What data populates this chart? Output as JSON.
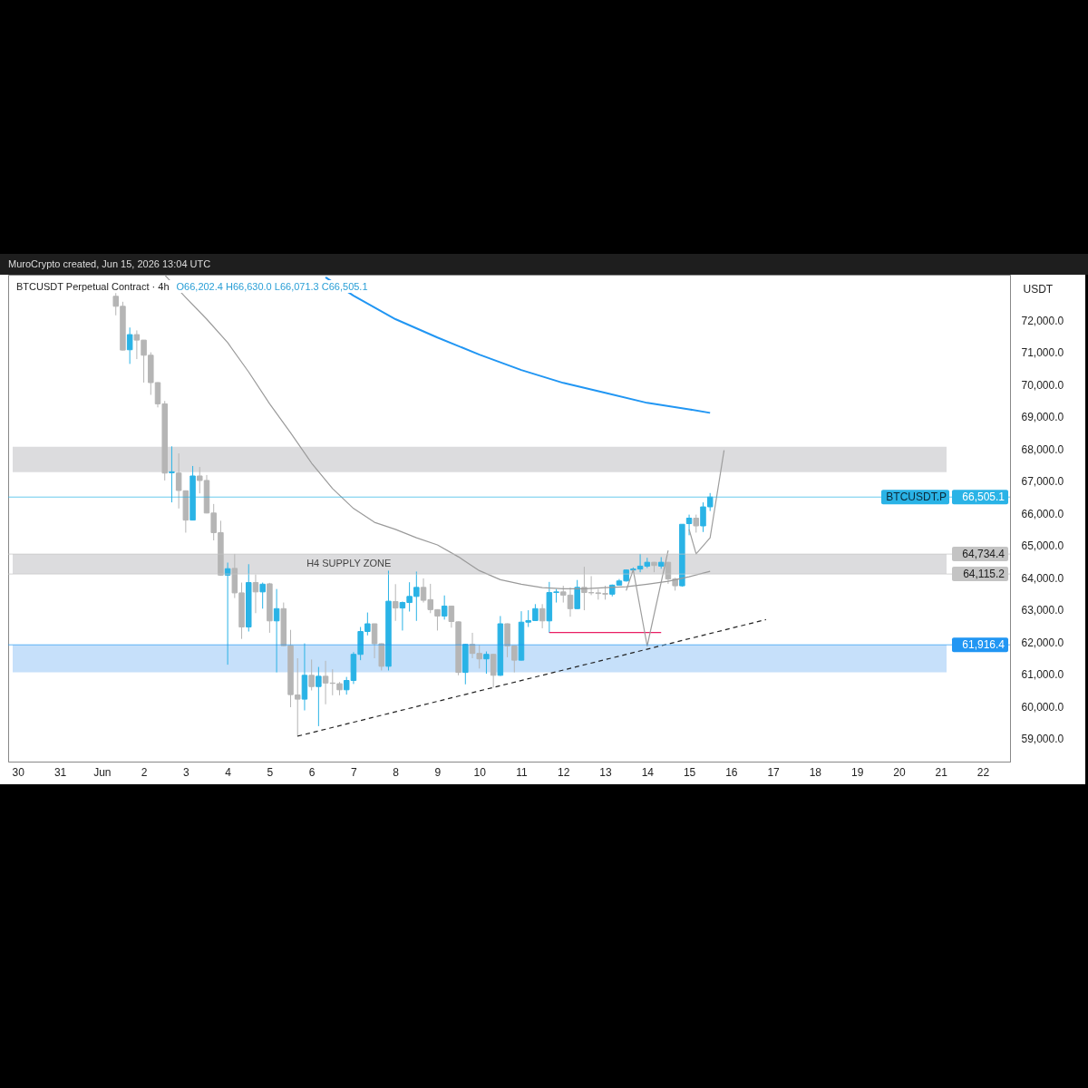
{
  "chart_data": {
    "type": "candlestick",
    "title": "BTCUSDT Perpetual Contract · 4h",
    "subtitle": "O66,202.4 H66,630.0 L66,071.3 C66,505.1",
    "ylabel": "USDT",
    "annotations": [
      "MuroCrypto created, Jun 15, 2026 13:04 UTC",
      {
        "text": "BTCUSDT.P",
        "y": 66505.1
      }
    ],
    "x": [
      "2026-06-01T08:00",
      "2026-06-01T12:00",
      "2026-06-01T16:00",
      "2026-06-01T20:00",
      "2026-06-02T00:00",
      "2026-06-02T04:00",
      "2026-06-02T08:00",
      "2026-06-02T12:00",
      "2026-06-02T16:00",
      "2026-06-02T20:00",
      "2026-06-03T00:00",
      "2026-06-03T04:00",
      "2026-06-03T08:00",
      "2026-06-03T12:00",
      "2026-06-03T16:00",
      "2026-06-03T20:00",
      "2026-06-04T00:00",
      "2026-06-04T04:00",
      "2026-06-04T08:00",
      "2026-06-04T12:00",
      "2026-06-04T16:00",
      "2026-06-04T20:00",
      "2026-06-05T00:00",
      "2026-06-05T04:00",
      "2026-06-05T08:00",
      "2026-06-05T12:00",
      "2026-06-05T16:00",
      "2026-06-05T20:00",
      "2026-06-06T00:00",
      "2026-06-06T04:00",
      "2026-06-06T08:00",
      "2026-06-06T12:00",
      "2026-06-06T16:00",
      "2026-06-06T20:00",
      "2026-06-07T00:00",
      "2026-06-07T04:00",
      "2026-06-07T08:00",
      "2026-06-07T12:00",
      "2026-06-07T16:00",
      "2026-06-07T20:00",
      "2026-06-08T00:00",
      "2026-06-08T04:00",
      "2026-06-08T08:00",
      "2026-06-08T12:00",
      "2026-06-08T16:00",
      "2026-06-08T20:00",
      "2026-06-09T00:00",
      "2026-06-09T04:00",
      "2026-06-09T08:00",
      "2026-06-09T12:00",
      "2026-06-09T16:00",
      "2026-06-09T20:00",
      "2026-06-10T00:00",
      "2026-06-10T04:00",
      "2026-06-10T08:00",
      "2026-06-10T12:00",
      "2026-06-10T16:00",
      "2026-06-10T20:00",
      "2026-06-11T00:00",
      "2026-06-11T04:00",
      "2026-06-11T08:00",
      "2026-06-11T12:00",
      "2026-06-11T16:00",
      "2026-06-11T20:00",
      "2026-06-12T00:00",
      "2026-06-12T04:00",
      "2026-06-12T08:00",
      "2026-06-12T12:00",
      "2026-06-12T16:00",
      "2026-06-12T20:00",
      "2026-06-13T00:00",
      "2026-06-13T04:00",
      "2026-06-13T08:00",
      "2026-06-13T12:00",
      "2026-06-13T16:00",
      "2026-06-13T20:00",
      "2026-06-14T00:00",
      "2026-06-14T04:00",
      "2026-06-14T08:00",
      "2026-06-14T12:00",
      "2026-06-14T16:00",
      "2026-06-14T20:00",
      "2026-06-15T00:00",
      "2026-06-15T04:00",
      "2026-06-15T08:00",
      "2026-06-15T12:00"
    ],
    "ohlc": [
      [
        72740,
        72840,
        72150,
        72430
      ],
      [
        72430,
        72570,
        71060,
        71070
      ],
      [
        71080,
        71770,
        70640,
        71550
      ],
      [
        71550,
        71680,
        70790,
        71380
      ],
      [
        71380,
        71380,
        70060,
        70910
      ],
      [
        70910,
        71000,
        69680,
        70060
      ],
      [
        70060,
        70070,
        69290,
        69400
      ],
      [
        69400,
        69490,
        67020,
        67250
      ],
      [
        67260,
        68080,
        66340,
        67290
      ],
      [
        67250,
        67860,
        66150,
        66710
      ],
      [
        66700,
        66710,
        65400,
        65790
      ],
      [
        65790,
        67470,
        65780,
        67160
      ],
      [
        67160,
        67440,
        66620,
        67020
      ],
      [
        67020,
        67190,
        66000,
        66010
      ],
      [
        66010,
        66290,
        65160,
        65400
      ],
      [
        65400,
        65770,
        64060,
        64080
      ],
      [
        64080,
        64470,
        61300,
        64280
      ],
      [
        64290,
        64740,
        63370,
        63530
      ],
      [
        63530,
        63850,
        62100,
        62470
      ],
      [
        62470,
        64420,
        62330,
        63850
      ],
      [
        63850,
        64100,
        62900,
        63560
      ],
      [
        63560,
        63850,
        63040,
        63800
      ],
      [
        63810,
        63840,
        62290,
        62660
      ],
      [
        62660,
        63650,
        61060,
        63040
      ],
      [
        63040,
        63230,
        61880,
        61890
      ],
      [
        61890,
        62380,
        59980,
        60370
      ],
      [
        60360,
        61500,
        59060,
        60230
      ],
      [
        60230,
        61960,
        59880,
        60970
      ],
      [
        60970,
        61460,
        60500,
        60620
      ],
      [
        60620,
        61230,
        59390,
        60940
      ],
      [
        60940,
        61420,
        60070,
        60730
      ],
      [
        60730,
        61160,
        60350,
        60720
      ],
      [
        60710,
        60760,
        60350,
        60520
      ],
      [
        60520,
        60920,
        60370,
        60810
      ],
      [
        60810,
        61690,
        60700,
        61620
      ],
      [
        61620,
        62470,
        61440,
        62330
      ],
      [
        62330,
        62920,
        62210,
        62570
      ],
      [
        62570,
        62570,
        61500,
        61950
      ],
      [
        61950,
        61960,
        61120,
        61250
      ],
      [
        61250,
        64220,
        61120,
        63270
      ],
      [
        63260,
        63800,
        62660,
        63060
      ],
      [
        63060,
        63260,
        62360,
        63230
      ],
      [
        63230,
        63860,
        62950,
        63420
      ],
      [
        63420,
        64190,
        62660,
        63700
      ],
      [
        63700,
        63980,
        63230,
        63300
      ],
      [
        63320,
        63810,
        62900,
        63010
      ],
      [
        63010,
        63020,
        62360,
        62810
      ],
      [
        62810,
        63450,
        62700,
        63120
      ],
      [
        63120,
        63130,
        62450,
        62640
      ],
      [
        62630,
        62640,
        60970,
        61060
      ],
      [
        61060,
        61940,
        60690,
        61930
      ],
      [
        61930,
        62290,
        61500,
        61650
      ],
      [
        61650,
        61910,
        61180,
        61480
      ],
      [
        61480,
        61710,
        61020,
        61620
      ],
      [
        61620,
        61630,
        60590,
        60970
      ],
      [
        60970,
        62810,
        60950,
        62570
      ],
      [
        62570,
        62580,
        61530,
        61880
      ],
      [
        61880,
        61890,
        61060,
        61440
      ],
      [
        61440,
        62960,
        61430,
        62620
      ],
      [
        62620,
        62990,
        62470,
        62670
      ],
      [
        62670,
        63180,
        62660,
        63040
      ],
      [
        63040,
        63180,
        62430,
        62660
      ],
      [
        62660,
        63870,
        62290,
        63540
      ],
      [
        63540,
        63650,
        63230,
        63560
      ],
      [
        63560,
        63750,
        63230,
        63460
      ],
      [
        63460,
        63700,
        62790,
        63040
      ],
      [
        63040,
        63930,
        63030,
        63700
      ],
      [
        63700,
        64340,
        62990,
        63540
      ],
      [
        63540,
        64050,
        63460,
        63530
      ],
      [
        63530,
        63650,
        63320,
        63510
      ],
      [
        63510,
        63750,
        63320,
        63490
      ],
      [
        63490,
        63790,
        63420,
        63770
      ],
      [
        63770,
        63960,
        63770,
        63900
      ],
      [
        63900,
        64260,
        63880,
        64240
      ],
      [
        64240,
        64320,
        64220,
        64270
      ],
      [
        64270,
        64740,
        64170,
        64360
      ],
      [
        64360,
        64620,
        64300,
        64480
      ],
      [
        64480,
        64490,
        64170,
        64380
      ],
      [
        64360,
        64640,
        64280,
        64480
      ],
      [
        64480,
        64490,
        63810,
        63960
      ],
      [
        63960,
        64000,
        63600,
        63750
      ],
      [
        63750,
        65660,
        63720,
        65660
      ],
      [
        65680,
        65960,
        65320,
        65850
      ],
      [
        65850,
        65960,
        65400,
        65610
      ],
      [
        65610,
        66340,
        65420,
        66200
      ],
      [
        66202.4,
        66630,
        66071.3,
        66505.1
      ]
    ],
    "colors": [
      "#b5b5b5",
      "#b5b5b5",
      "#2ab3e6",
      "#b5b5b5",
      "#b5b5b5",
      "#b5b5b5",
      "#b5b5b5",
      "#b5b5b5",
      "#2ab3e6",
      "#b5b5b5",
      "#b5b5b5",
      "#2ab3e6",
      "#b5b5b5",
      "#b5b5b5",
      "#b5b5b5",
      "#b5b5b5",
      "#2ab3e6",
      "#b5b5b5",
      "#b5b5b5",
      "#2ab3e6",
      "#b5b5b5",
      "#2ab3e6",
      "#b5b5b5",
      "#2ab3e6",
      "#b5b5b5",
      "#b5b5b5",
      "#b5b5b5",
      "#2ab3e6",
      "#b5b5b5",
      "#2ab3e6",
      "#b5b5b5",
      "#b5b5b5",
      "#b5b5b5",
      "#2ab3e6",
      "#2ab3e6",
      "#2ab3e6",
      "#2ab3e6",
      "#b5b5b5",
      "#b5b5b5",
      "#2ab3e6",
      "#b5b5b5",
      "#2ab3e6",
      "#2ab3e6",
      "#2ab3e6",
      "#b5b5b5",
      "#b5b5b5",
      "#b5b5b5",
      "#2ab3e6",
      "#b5b5b5",
      "#b5b5b5",
      "#2ab3e6",
      "#b5b5b5",
      "#b5b5b5",
      "#2ab3e6",
      "#b5b5b5",
      "#2ab3e6",
      "#b5b5b5",
      "#b5b5b5",
      "#2ab3e6",
      "#2ab3e6",
      "#2ab3e6",
      "#b5b5b5",
      "#2ab3e6",
      "#2ab3e6",
      "#b5b5b5",
      "#b5b5b5",
      "#2ab3e6",
      "#b5b5b5",
      "#b5b5b5",
      "#b5b5b5",
      "#b5b5b5",
      "#2ab3e6",
      "#2ab3e6",
      "#2ab3e6",
      "#2ab3e6",
      "#2ab3e6",
      "#2ab3e6",
      "#b5b5b5",
      "#2ab3e6",
      "#b5b5b5",
      "#b5b5b5",
      "#2ab3e6",
      "#2ab3e6",
      "#b5b5b5",
      "#2ab3e6",
      "#2ab3e6"
    ],
    "series": [
      {
        "type": "line",
        "color": "#2196f3",
        "x": [
          "2026-06-06T08:00",
          "2026-06-07T00:00",
          "2026-06-08T00:00",
          "2026-06-09T00:00",
          "2026-06-10T00:00",
          "2026-06-11T00:00",
          "2026-06-12T00:00",
          "2026-06-13T00:00",
          "2026-06-14T00:00",
          "2026-06-15T00:00",
          "2026-06-15T12:00"
        ],
        "values": [
          73330,
          72760,
          72030,
          71460,
          70930,
          70450,
          70050,
          69740,
          69430,
          69230,
          69120
        ]
      },
      {
        "type": "line",
        "color": "#9a9a9a",
        "x": [
          "2026-06-02T12:00",
          "2026-06-03T00:00",
          "2026-06-03T12:00",
          "2026-06-04T00:00",
          "2026-06-04T12:00",
          "2026-06-05T00:00",
          "2026-06-05T12:00",
          "2026-06-06T00:00",
          "2026-06-06T12:00",
          "2026-06-07T00:00",
          "2026-06-07T12:00",
          "2026-06-08T00:00",
          "2026-06-08T12:00",
          "2026-06-09T00:00",
          "2026-06-09T12:00",
          "2026-06-10T00:00",
          "2026-06-10T12:00",
          "2026-06-11T00:00",
          "2026-06-11T12:00",
          "2026-06-12T00:00",
          "2026-06-12T12:00",
          "2026-06-13T00:00",
          "2026-06-13T12:00",
          "2026-06-14T00:00",
          "2026-06-14T12:00",
          "2026-06-15T00:00",
          "2026-06-15T12:00"
        ],
        "values": [
          73400,
          72700,
          72030,
          71300,
          70390,
          69400,
          68500,
          67560,
          66770,
          66150,
          65720,
          65500,
          65240,
          65020,
          64650,
          64220,
          63940,
          63800,
          63690,
          63660,
          63660,
          63690,
          63720,
          63800,
          63890,
          64030,
          64200
        ]
      },
      {
        "type": "line",
        "color": "#222222",
        "line_style": "dashed",
        "x": [
          "2026-06-05T16:00",
          "2026-06-16T20:00"
        ],
        "values": [
          59080,
          62700
        ]
      },
      {
        "type": "line",
        "color": "#e91e63",
        "x": [
          "2026-06-11T16:00",
          "2026-06-14T08:00"
        ],
        "values": [
          62300,
          62300
        ]
      },
      {
        "type": "line",
        "color": "#9e9e9e",
        "x": [
          "2026-06-13T12:00",
          "2026-06-13T16:00",
          "2026-06-14T00:00",
          "2026-06-14T12:00"
        ],
        "values": [
          63600,
          64250,
          61880,
          64850
        ]
      },
      {
        "type": "line",
        "color": "#9e9e9e",
        "x": [
          "2026-06-15T00:00",
          "2026-06-15T04:00",
          "2026-06-15T12:00",
          "2026-06-15T20:00"
        ],
        "values": [
          65500,
          64740,
          65240,
          67960
        ]
      }
    ],
    "bands": [
      {
        "axis": "y",
        "from": 67280,
        "to": 68070,
        "color": "#dcdcde"
      },
      {
        "axis": "y",
        "from": 64115.2,
        "to": 64734.4,
        "label": "H4 SUPPLY ZONE",
        "color": "#dcdcde"
      },
      {
        "axis": "y",
        "from": 61060,
        "to": 61916.4,
        "color": "#c6e0fa"
      }
    ],
    "ref_lines": [
      {
        "axis": "y",
        "value": 66505.1,
        "label": "66,505.1",
        "color": "#2ab3e6"
      },
      {
        "axis": "y",
        "value": 64734.4,
        "label": "64,734.4",
        "color": "#c4c4c4"
      },
      {
        "axis": "y",
        "value": 64115.2,
        "label": "64,115.2",
        "color": "#c4c4c4"
      },
      {
        "axis": "y",
        "value": 61916.4,
        "label": "61,916.4",
        "color": "#2196f3"
      }
    ],
    "xlim": [
      "2026-05-29T21:00",
      "2026-06-22T13:00"
    ],
    "xticks": [
      {
        "value": "2026-05-30",
        "label": "30"
      },
      {
        "value": "2026-05-31",
        "label": "31"
      },
      {
        "value": "2026-06-01",
        "label": "Jun"
      },
      {
        "value": "2026-06-02",
        "label": "2"
      },
      {
        "value": "2026-06-03",
        "label": "3"
      },
      {
        "value": "2026-06-04",
        "label": "4"
      },
      {
        "value": "2026-06-05",
        "label": "5"
      },
      {
        "value": "2026-06-06",
        "label": "6"
      },
      {
        "value": "2026-06-07",
        "label": "7"
      },
      {
        "value": "2026-06-08",
        "label": "8"
      },
      {
        "value": "2026-06-09",
        "label": "9"
      },
      {
        "value": "2026-06-10",
        "label": "10"
      },
      {
        "value": "2026-06-11",
        "label": "11"
      },
      {
        "value": "2026-06-12",
        "label": "12"
      },
      {
        "value": "2026-06-13",
        "label": "13"
      },
      {
        "value": "2026-06-14",
        "label": "14"
      },
      {
        "value": "2026-06-15",
        "label": "15"
      },
      {
        "value": "2026-06-16",
        "label": "16"
      },
      {
        "value": "2026-06-17",
        "label": "17"
      },
      {
        "value": "2026-06-18",
        "label": "18"
      },
      {
        "value": "2026-06-19",
        "label": "19"
      },
      {
        "value": "2026-06-20",
        "label": "20"
      },
      {
        "value": "2026-06-21",
        "label": "21"
      },
      {
        "value": "2026-06-22",
        "label": "22"
      }
    ],
    "ylim": [
      58290,
      73410
    ],
    "yticks": [
      {
        "value": 59000,
        "label": "59,000.0"
      },
      {
        "value": 60000,
        "label": "60,000.0"
      },
      {
        "value": 61000,
        "label": "61,000.0"
      },
      {
        "value": 62000,
        "label": "62,000.0"
      },
      {
        "value": 63000,
        "label": "63,000.0"
      },
      {
        "value": 64000,
        "label": "64,000.0"
      },
      {
        "value": 65000,
        "label": "65,000.0"
      },
      {
        "value": 66000,
        "label": "66,000.0"
      },
      {
        "value": 67000,
        "label": "67,000.0"
      },
      {
        "value": 68000,
        "label": "68,000.0"
      },
      {
        "value": 69000,
        "label": "69,000.0"
      },
      {
        "value": 70000,
        "label": "70,000.0"
      },
      {
        "value": 71000,
        "label": "71,000.0"
      },
      {
        "value": 72000,
        "label": "72,000.0"
      }
    ]
  }
}
